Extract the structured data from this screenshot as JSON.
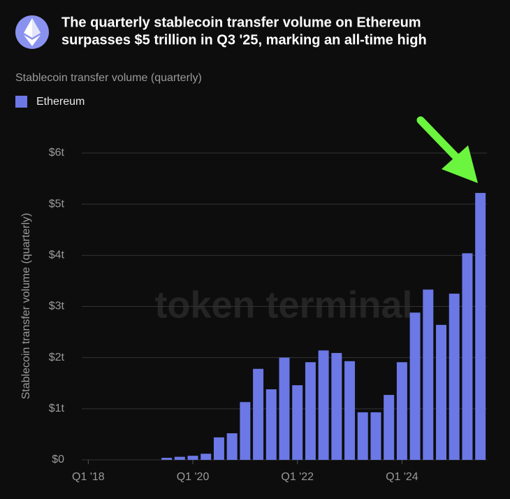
{
  "chart_data": {
    "type": "bar",
    "title": "The quarterly stablecoin transfer volume on Ethereum",
    "title_line2": "surpasses $5 trillion in Q3 '25, marking an all-time high",
    "subtitle": "Stablecoin transfer volume (quarterly)",
    "y_label": "Stablecoin transfer volume (quarterly)",
    "watermark": "token terminal",
    "legend_name": "Ethereum",
    "color": "#6b78e6",
    "categories": [
      "Q1 '18",
      null,
      null,
      null,
      null,
      null,
      null,
      null,
      "Q1 '20",
      null,
      null,
      null,
      null,
      null,
      null,
      null,
      "Q1 '22",
      null,
      null,
      null,
      null,
      null,
      null,
      null,
      "Q1 '24",
      null,
      null,
      null,
      null,
      null,
      null
    ],
    "values": [
      0,
      0,
      0,
      0,
      0,
      0,
      0.04,
      0.06,
      0.08,
      0.12,
      0.44,
      0.52,
      1.13,
      1.78,
      1.38,
      2.0,
      1.46,
      1.91,
      2.14,
      2.09,
      1.93,
      0.93,
      0.93,
      1.27,
      1.91,
      2.88,
      3.33,
      2.64,
      3.25,
      4.04,
      5.22
    ],
    "ylim": [
      0,
      6
    ],
    "yticks": [
      {
        "value": 0,
        "label": "$0"
      },
      {
        "value": 1,
        "label": "$1t"
      },
      {
        "value": 2,
        "label": "$2t"
      },
      {
        "value": 3,
        "label": "$3t"
      },
      {
        "value": 4,
        "label": "$4t"
      },
      {
        "value": 5,
        "label": "$5t"
      },
      {
        "value": 6,
        "label": "$6t"
      }
    ],
    "grid": true
  }
}
